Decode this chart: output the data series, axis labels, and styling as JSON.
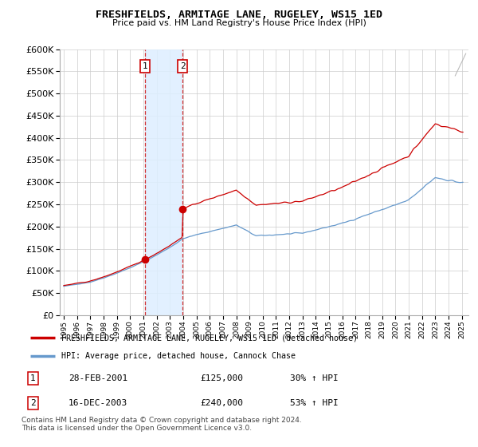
{
  "title": "FRESHFIELDS, ARMITAGE LANE, RUGELEY, WS15 1ED",
  "subtitle": "Price paid vs. HM Land Registry's House Price Index (HPI)",
  "legend_line1": "FRESHFIELDS, ARMITAGE LANE, RUGELEY, WS15 1ED (detached house)",
  "legend_line2": "HPI: Average price, detached house, Cannock Chase",
  "transaction1_date": "28-FEB-2001",
  "transaction1_price": "£125,000",
  "transaction1_hpi": "30% ↑ HPI",
  "transaction2_date": "16-DEC-2003",
  "transaction2_price": "£240,000",
  "transaction2_hpi": "53% ↑ HPI",
  "footer": "Contains HM Land Registry data © Crown copyright and database right 2024.\nThis data is licensed under the Open Government Licence v3.0.",
  "hpi_color": "#6699cc",
  "price_paid_color": "#cc0000",
  "shading_color": "#ddeeff",
  "transaction1_x": 2001.12,
  "transaction2_x": 2003.96,
  "transaction1_y": 125000,
  "transaction2_y": 240000,
  "ylim": [
    0,
    600000
  ],
  "yticks": [
    0,
    50000,
    100000,
    150000,
    200000,
    250000,
    300000,
    350000,
    400000,
    450000,
    500000,
    550000,
    600000
  ],
  "xlim_start": 1994.7,
  "xlim_end": 2025.5
}
